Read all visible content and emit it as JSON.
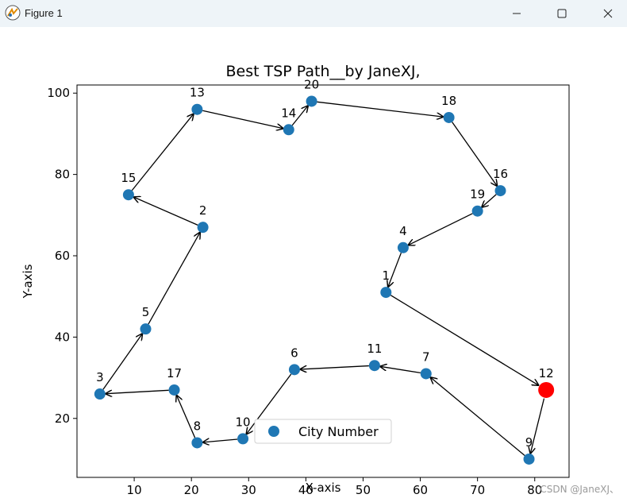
{
  "window": {
    "title": "Figure 1",
    "icons": {
      "app": "figure-app-icon",
      "minimize": "minimize-icon",
      "maximize": "maximize-icon",
      "close": "close-icon"
    }
  },
  "chart_data": {
    "type": "scatter",
    "title": "Best TSP Path__by JaneXJ,",
    "xlabel": "X-axis",
    "ylabel": "Y-axis",
    "xlim": [
      0,
      86
    ],
    "ylim": [
      5.5,
      102
    ],
    "xticks": [
      10,
      20,
      30,
      40,
      50,
      60,
      70,
      80
    ],
    "yticks": [
      20,
      40,
      60,
      80,
      100
    ],
    "grid": false,
    "legend": {
      "position": "lower center",
      "entries": [
        "City Number"
      ]
    },
    "marker_color": "#1f77b4",
    "start_color": "#ff0000",
    "cities": [
      {
        "id": "1",
        "x": 54,
        "y": 51
      },
      {
        "id": "2",
        "x": 22,
        "y": 67
      },
      {
        "id": "3",
        "x": 4,
        "y": 26
      },
      {
        "id": "4",
        "x": 57,
        "y": 62
      },
      {
        "id": "5",
        "x": 12,
        "y": 42
      },
      {
        "id": "6",
        "x": 38,
        "y": 32
      },
      {
        "id": "7",
        "x": 61,
        "y": 31
      },
      {
        "id": "8",
        "x": 21,
        "y": 14
      },
      {
        "id": "9",
        "x": 79,
        "y": 10
      },
      {
        "id": "10",
        "x": 29,
        "y": 15
      },
      {
        "id": "11",
        "x": 52,
        "y": 33
      },
      {
        "id": "12",
        "x": 82,
        "y": 27
      },
      {
        "id": "13",
        "x": 21,
        "y": 96
      },
      {
        "id": "14",
        "x": 37,
        "y": 91
      },
      {
        "id": "15",
        "x": 9,
        "y": 75
      },
      {
        "id": "16",
        "x": 74,
        "y": 76
      },
      {
        "id": "17",
        "x": 17,
        "y": 27
      },
      {
        "id": "18",
        "x": 65,
        "y": 94
      },
      {
        "id": "19",
        "x": 70,
        "y": 71
      },
      {
        "id": "20",
        "x": 41,
        "y": 98
      }
    ],
    "start_city": "12",
    "path": [
      "12",
      "9",
      "7",
      "11",
      "6",
      "10",
      "8",
      "17",
      "3",
      "5",
      "2",
      "15",
      "13",
      "14",
      "20",
      "18",
      "16",
      "19",
      "4",
      "1",
      "12"
    ]
  },
  "watermark": "CSDN @JaneXJ、"
}
